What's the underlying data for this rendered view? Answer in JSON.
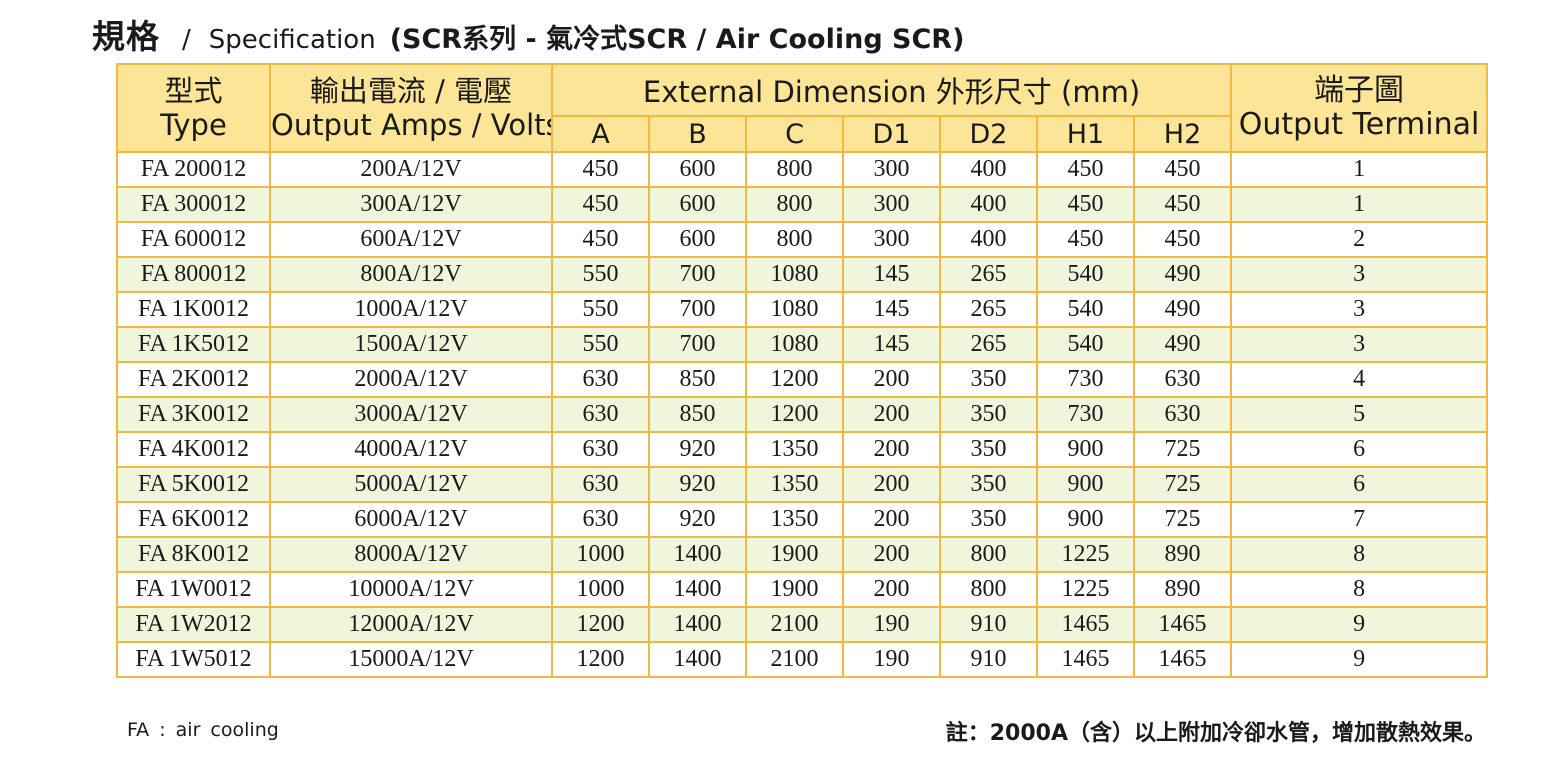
{
  "title": {
    "zh": "規格",
    "slash": "/",
    "en": "Specification",
    "sub": "(SCR系列 - 氣冷式SCR / Air Cooling SCR)"
  },
  "table": {
    "headers": {
      "type_zh": "型式",
      "type_en": "Type",
      "output_zh": "輸出電流 / 電壓",
      "output_en": "Output Amps / Volts",
      "dimension": "External Dimension 外形尺寸 (mm)",
      "dim_cols": [
        "A",
        "B",
        "C",
        "D1",
        "D2",
        "H1",
        "H2"
      ],
      "terminal_zh": "端子圖",
      "terminal_en": "Output Terminal"
    },
    "rows": [
      [
        "FA 200012",
        "200A/12V",
        "450",
        "600",
        "800",
        "300",
        "400",
        "450",
        "450",
        "1"
      ],
      [
        "FA 300012",
        "300A/12V",
        "450",
        "600",
        "800",
        "300",
        "400",
        "450",
        "450",
        "1"
      ],
      [
        "FA 600012",
        "600A/12V",
        "450",
        "600",
        "800",
        "300",
        "400",
        "450",
        "450",
        "2"
      ],
      [
        "FA 800012",
        "800A/12V",
        "550",
        "700",
        "1080",
        "145",
        "265",
        "540",
        "490",
        "3"
      ],
      [
        "FA 1K0012",
        "1000A/12V",
        "550",
        "700",
        "1080",
        "145",
        "265",
        "540",
        "490",
        "3"
      ],
      [
        "FA 1K5012",
        "1500A/12V",
        "550",
        "700",
        "1080",
        "145",
        "265",
        "540",
        "490",
        "3"
      ],
      [
        "FA 2K0012",
        "2000A/12V",
        "630",
        "850",
        "1200",
        "200",
        "350",
        "730",
        "630",
        "4"
      ],
      [
        "FA 3K0012",
        "3000A/12V",
        "630",
        "850",
        "1200",
        "200",
        "350",
        "730",
        "630",
        "5"
      ],
      [
        "FA 4K0012",
        "4000A/12V",
        "630",
        "920",
        "1350",
        "200",
        "350",
        "900",
        "725",
        "6"
      ],
      [
        "FA 5K0012",
        "5000A/12V",
        "630",
        "920",
        "1350",
        "200",
        "350",
        "900",
        "725",
        "6"
      ],
      [
        "FA 6K0012",
        "6000A/12V",
        "630",
        "920",
        "1350",
        "200",
        "350",
        "900",
        "725",
        "7"
      ],
      [
        "FA 8K0012",
        "8000A/12V",
        "1000",
        "1400",
        "1900",
        "200",
        "800",
        "1225",
        "890",
        "8"
      ],
      [
        "FA 1W0012",
        "10000A/12V",
        "1000",
        "1400",
        "1900",
        "200",
        "800",
        "1225",
        "890",
        "8"
      ],
      [
        "FA 1W2012",
        "12000A/12V",
        "1200",
        "1400",
        "2100",
        "190",
        "910",
        "1465",
        "1465",
        "9"
      ],
      [
        "FA 1W5012",
        "15000A/12V",
        "1200",
        "1400",
        "2100",
        "190",
        "910",
        "1465",
        "1465",
        "9"
      ]
    ]
  },
  "notes": {
    "left": "FA : air cooling",
    "right": "註：2000A（含）以上附加冷卻水管，增加散熱效果。"
  },
  "colors": {
    "header_bg": "#fde597",
    "border": "#f2b844",
    "stripe": "#f0f6dc"
  }
}
